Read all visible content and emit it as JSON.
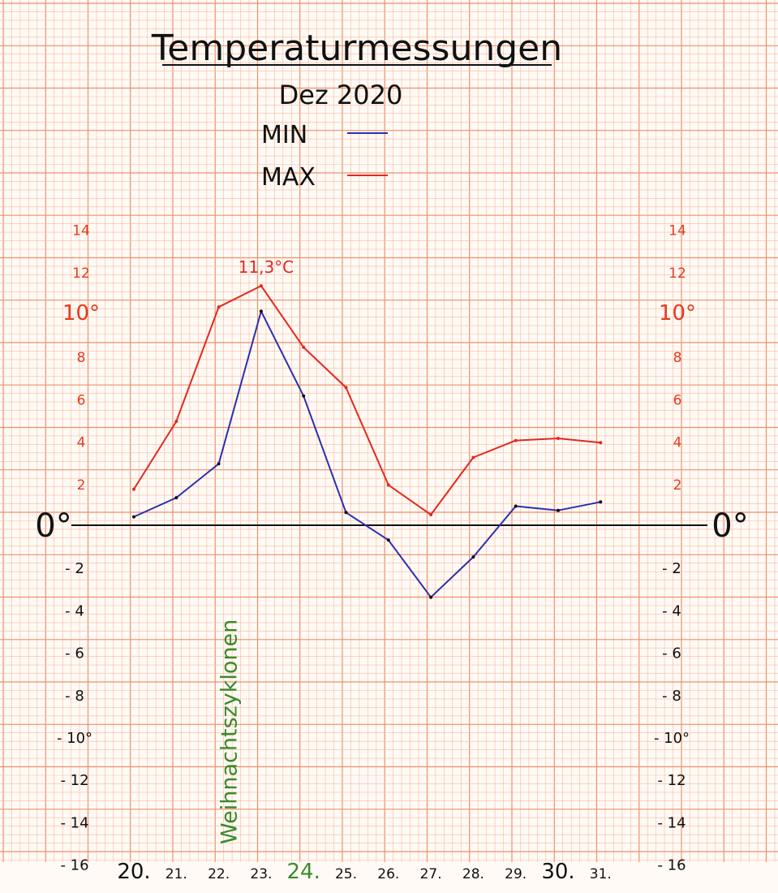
{
  "chart_data": {
    "type": "line",
    "title": "Temperaturmessungen",
    "subtitle": "Dez 2020",
    "categories": [
      "20.",
      "21.",
      "22.",
      "23.",
      "24.",
      "25.",
      "26.",
      "27.",
      "28.",
      "29.",
      "30.",
      "31."
    ],
    "highlight_category": "24.",
    "series": [
      {
        "name": "MIN",
        "color": "#2a2fb0",
        "values": [
          0.4,
          1.3,
          2.9,
          10.1,
          6.1,
          0.6,
          -0.7,
          -3.4,
          -1.5,
          0.9,
          0.7,
          1.1
        ]
      },
      {
        "name": "MAX",
        "color": "#e3281e",
        "values": [
          1.7,
          4.9,
          10.3,
          11.3,
          8.4,
          6.5,
          1.9,
          0.5,
          3.2,
          4.0,
          4.1,
          3.9
        ]
      }
    ],
    "ylim": [
      -16,
      14
    ],
    "y_ticks_positive": [
      "2",
      "4",
      "6",
      "8",
      "10°",
      "12",
      "14"
    ],
    "y_ticks_negative": [
      "- 2",
      "- 4",
      "- 6",
      "- 8",
      "- 10°",
      "- 12",
      "- 14",
      "- 16"
    ],
    "zero_label": "0°",
    "annotations": [
      {
        "text": "11,3°C",
        "x_category": "23.",
        "y": 11.3,
        "color": "#e3281e"
      },
      {
        "text": "Weihnachtszyklonen",
        "x_category": "22.",
        "orientation": "vertical",
        "color": "#3a8a2a"
      }
    ],
    "grid": true,
    "legend_position": "top"
  },
  "colors": {
    "grid_minor": "#f6b9a0",
    "grid_major": "#ef8f6c",
    "axis": "#111111",
    "tick_red": "#e63a1e",
    "annotation_green": "#3a8a2a"
  }
}
